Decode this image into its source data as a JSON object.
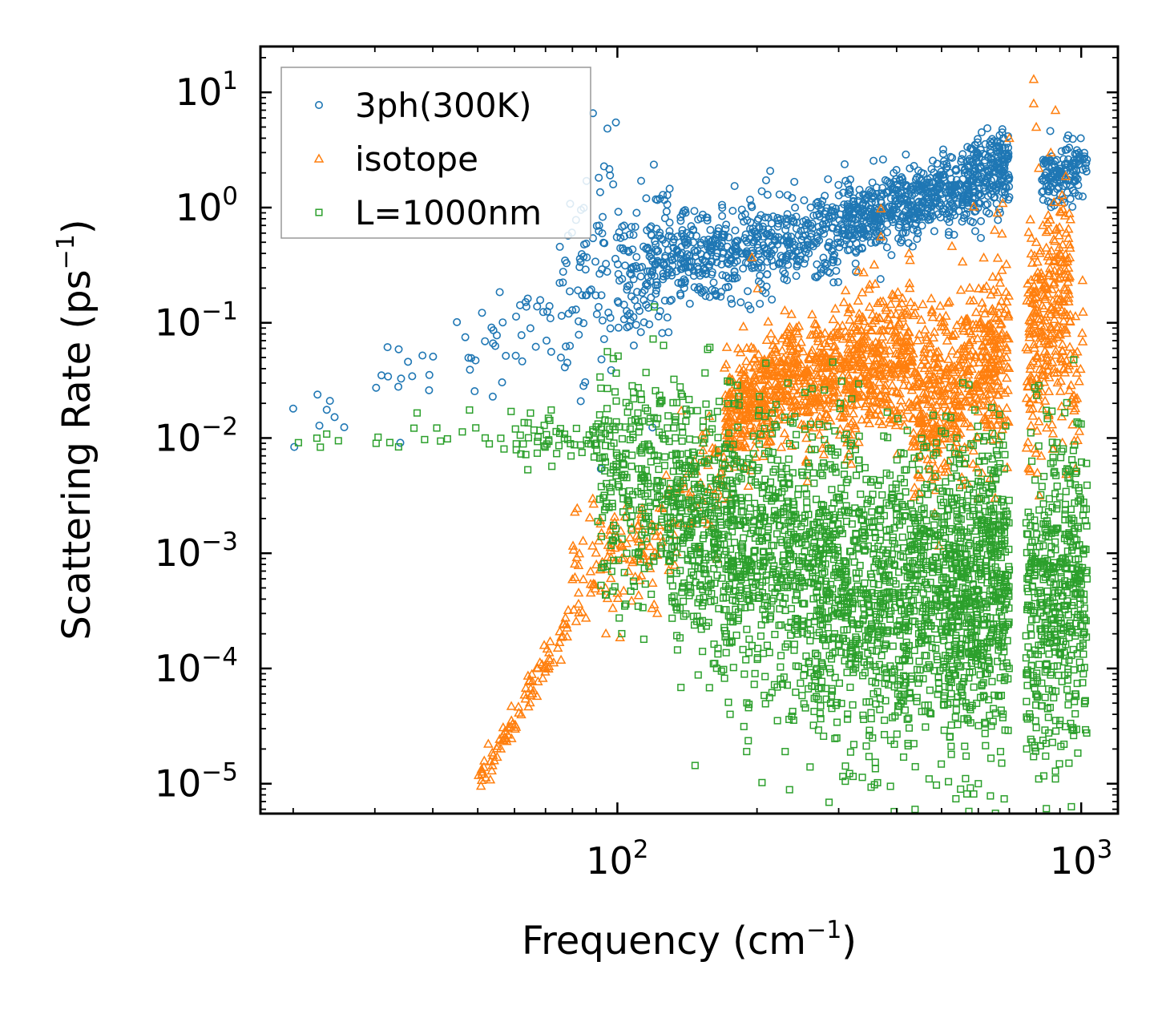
{
  "chart_data": {
    "type": "scatter",
    "xscale": "log",
    "yscale": "log",
    "xlim": [
      17,
      1200
    ],
    "ylim": [
      5.5e-06,
      25
    ],
    "xlabel": {
      "base": "Frequency (cm",
      "sup": "−1",
      "tail": ")"
    },
    "ylabel": {
      "base": "Scattering Rate (ps",
      "sup": "−1",
      "tail": ")"
    },
    "x_ticks": [
      {
        "value": 100,
        "base": "10",
        "exp": "2"
      },
      {
        "value": 1000,
        "base": "10",
        "exp": "3"
      }
    ],
    "y_ticks": [
      {
        "value": 10,
        "base": "10",
        "exp": "1"
      },
      {
        "value": 1,
        "base": "10",
        "exp": "0"
      },
      {
        "value": 0.1,
        "base": "10",
        "exp": "−1"
      },
      {
        "value": 0.01,
        "base": "10",
        "exp": "−2"
      },
      {
        "value": 0.001,
        "base": "10",
        "exp": "−3"
      },
      {
        "value": 0.0001,
        "base": "10",
        "exp": "−4"
      },
      {
        "value": 1e-05,
        "base": "10",
        "exp": "−5"
      }
    ],
    "legend_position": "top-left",
    "series": [
      {
        "name": "3ph(300K)",
        "marker": "circle",
        "color": "#1f77b4",
        "segments": [
          {
            "x0": 20,
            "x1": 26,
            "y0": 0.018,
            "y1": 0.015,
            "spread": 0.12,
            "n": 6
          },
          {
            "x0": 30,
            "x1": 45,
            "y0": 0.03,
            "y1": 0.06,
            "spread": 0.2,
            "n": 12
          },
          {
            "x0": 45,
            "x1": 75,
            "y0": 0.06,
            "y1": 0.12,
            "spread": 0.25,
            "n": 35
          },
          {
            "x0": 75,
            "x1": 100,
            "y0": 0.15,
            "y1": 0.5,
            "spread": 0.45,
            "n": 80
          },
          {
            "x0": 100,
            "x1": 130,
            "y0": 0.3,
            "y1": 0.4,
            "spread": 0.35,
            "n": 150
          },
          {
            "x0": 130,
            "x1": 300,
            "y0": 0.35,
            "y1": 0.6,
            "spread": 0.2,
            "n": 500
          },
          {
            "x0": 300,
            "x1": 550,
            "y0": 0.7,
            "y1": 1.5,
            "spread": 0.15,
            "n": 500
          },
          {
            "x0": 550,
            "x1": 700,
            "y0": 1.5,
            "y1": 2.5,
            "spread": 0.17,
            "n": 250
          },
          {
            "x0": 820,
            "x1": 1030,
            "y0": 1.8,
            "y1": 2.4,
            "spread": 0.12,
            "n": 140
          }
        ],
        "points": [
          [
            20,
            0.018
          ],
          [
            24,
            0.021
          ],
          [
            31,
            0.035
          ],
          [
            38,
            0.052
          ],
          [
            47,
            0.075
          ],
          [
            72,
            0.056
          ],
          [
            110,
            0.9
          ],
          [
            140,
            0.95
          ],
          [
            290,
            0.85
          ],
          [
            610,
            4.5
          ],
          [
            590,
            3.5
          ],
          [
            920,
            1.1
          ],
          [
            860,
            1.1
          ],
          [
            410,
            0.52
          ]
        ]
      },
      {
        "name": "isotope",
        "marker": "triangle",
        "color": "#ff7f0e",
        "segments": [
          {
            "x0": 50,
            "x1": 80,
            "y0": 1e-05,
            "y1": 0.0003,
            "spread": 0.07,
            "n": 90
          },
          {
            "x0": 80,
            "x1": 125,
            "y0": 0.0006,
            "y1": 0.0012,
            "spread": 0.25,
            "n": 120
          },
          {
            "x0": 125,
            "x1": 170,
            "y0": 0.002,
            "y1": 0.006,
            "spread": 0.3,
            "n": 60
          },
          {
            "x0": 170,
            "x1": 250,
            "y0": 0.015,
            "y1": 0.04,
            "spread": 0.25,
            "n": 400
          },
          {
            "x0": 250,
            "x1": 430,
            "y0": 0.025,
            "y1": 0.06,
            "spread": 0.3,
            "n": 550
          },
          {
            "x0": 430,
            "x1": 700,
            "y0": 0.015,
            "y1": 0.06,
            "spread": 0.4,
            "n": 550
          },
          {
            "x0": 760,
            "x1": 950,
            "y0": 0.05,
            "y1": 0.2,
            "spread": 0.5,
            "n": 300
          },
          {
            "x0": 950,
            "x1": 1010,
            "y0": 0.02,
            "y1": 0.08,
            "spread": 0.3,
            "n": 25
          }
        ],
        "points": [
          [
            195,
            0.37
          ],
          [
            370,
            0.98
          ],
          [
            370,
            0.56
          ],
          [
            790,
            13
          ],
          [
            790,
            8
          ],
          [
            800,
            5
          ],
          [
            880,
            7
          ],
          [
            660,
            0.9
          ],
          [
            700,
            4
          ],
          [
            860,
            3
          ],
          [
            810,
            2.2
          ],
          [
            600,
            0.003
          ],
          [
            570,
            0.004
          ],
          [
            540,
            0.012
          ],
          [
            820,
            0.007
          ],
          [
            770,
            0.0055
          ]
        ]
      },
      {
        "name": "L=1000nm",
        "marker": "square",
        "color": "#2ca02c",
        "segments": [
          {
            "x0": 20,
            "x1": 60,
            "y0": 0.0088,
            "y1": 0.0102,
            "spread": 0.05,
            "n": 20
          },
          {
            "x0": 60,
            "x1": 100,
            "y0": 0.0095,
            "y1": 0.009,
            "spread": 0.1,
            "n": 60
          },
          {
            "x0": 90,
            "x1": 130,
            "y0": 0.004,
            "y1": 0.003,
            "spread": 0.55,
            "n": 250
          },
          {
            "x0": 130,
            "x1": 250,
            "y0": 0.002,
            "y1": 0.0007,
            "spread": 0.6,
            "n": 800
          },
          {
            "x0": 250,
            "x1": 500,
            "y0": 0.0006,
            "y1": 0.0004,
            "spread": 0.65,
            "n": 1000
          },
          {
            "x0": 500,
            "x1": 700,
            "y0": 0.0004,
            "y1": 0.0006,
            "spread": 0.65,
            "n": 700
          },
          {
            "x0": 760,
            "x1": 1030,
            "y0": 0.0003,
            "y1": 0.0006,
            "spread": 0.7,
            "n": 500
          }
        ],
        "points": [
          [
            37,
            0.0165
          ],
          [
            48,
            0.0175
          ],
          [
            59,
            0.017
          ],
          [
            72,
            0.0175
          ],
          [
            95,
            0.018
          ],
          [
            120,
            0.015
          ],
          [
            160,
            0.012
          ],
          [
            175,
            4e-05
          ],
          [
            190,
            1.9e-05
          ],
          [
            230,
            1.9e-05
          ],
          [
            310,
            1.05e-05
          ],
          [
            360,
            1.35e-05
          ],
          [
            470,
            1.1e-05
          ],
          [
            600,
            1e-05
          ],
          [
            670,
            1.9e-05
          ],
          [
            810,
            1.1e-05
          ],
          [
            880,
            1.1e-05
          ],
          [
            1000,
            0.0001
          ],
          [
            980,
            0.0006
          ],
          [
            860,
            0.006
          ],
          [
            600,
            0.005
          ]
        ]
      }
    ]
  }
}
